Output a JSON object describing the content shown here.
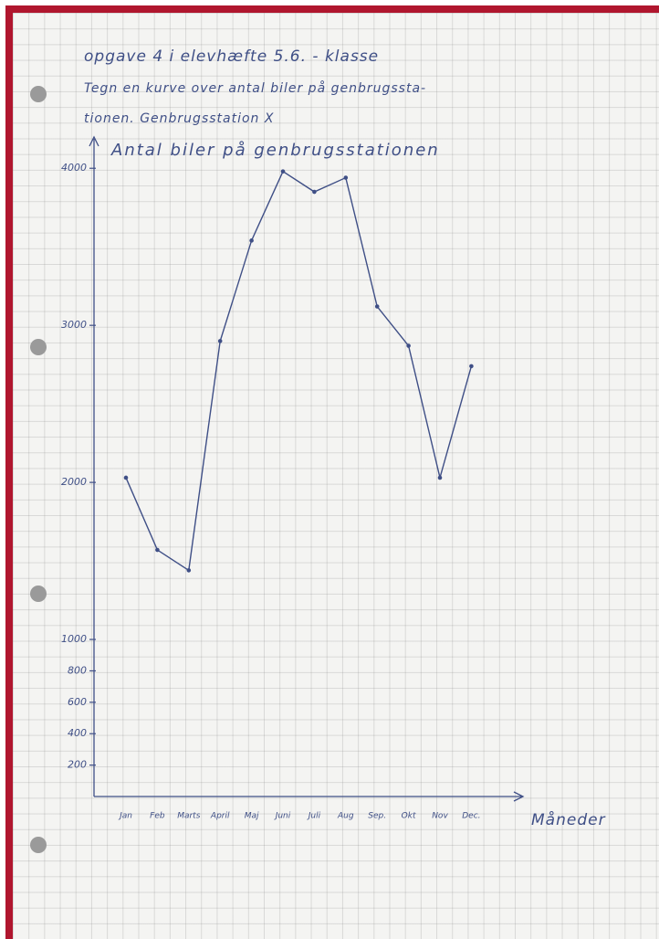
{
  "header": [
    "opgave 4 i elevhæfte 5.6. - klasse",
    "Tegn en kurve over antal biler på genbrugssta-",
    "tionen. Genbrugsstation X"
  ],
  "chart_data": {
    "type": "line",
    "title": "Antal biler på genbrugsstationen",
    "x_label": "Måneder",
    "categories": [
      "Jan",
      "Feb",
      "Marts",
      "April",
      "Maj",
      "Juni",
      "Juli",
      "Aug",
      "Sep.",
      "Okt",
      "Nov",
      "Dec."
    ],
    "series": [
      {
        "name": "Antal biler",
        "color": "#3f4f86",
        "values": [
          2030,
          1570,
          1440,
          2900,
          3540,
          3980,
          3850,
          3940,
          3120,
          2870,
          2030,
          2740
        ]
      }
    ],
    "ylim": [
      0,
      4170
    ],
    "yticks": [
      200,
      400,
      600,
      800,
      1000,
      2000,
      3000,
      4000
    ]
  }
}
